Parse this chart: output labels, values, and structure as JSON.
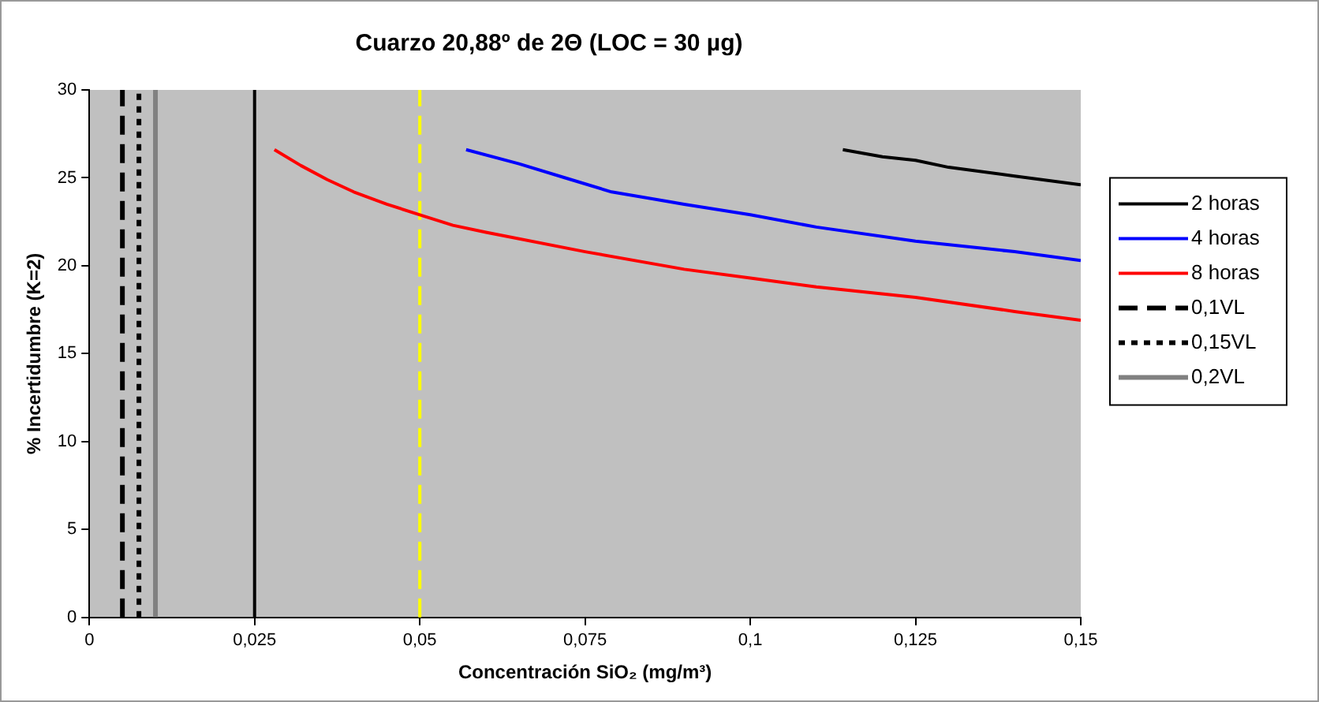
{
  "chart_data": {
    "type": "line",
    "title": "Cuarzo 20,88º de 2Θ (LOC = 30 µg)",
    "xlabel": "Concentración SiO₂ (mg/m³)",
    "ylabel": "% Incertidumbre (K=2)",
    "xlim": [
      0,
      0.15
    ],
    "xticks": [
      0,
      {
        "value": 0.025,
        "label": "0,025"
      },
      {
        "value": 0.05,
        "label": "0,05"
      },
      {
        "value": 0.075,
        "label": "0,075"
      },
      {
        "value": 0.1,
        "label": "0,1"
      },
      {
        "value": 0.125,
        "label": "0,125"
      },
      {
        "value": 0.15,
        "label": "0,15"
      }
    ],
    "ylim": [
      0,
      30
    ],
    "yticks": [
      0,
      5,
      10,
      15,
      20,
      25,
      30
    ],
    "grid": false,
    "legend": "right",
    "marker": "none",
    "series": [
      {
        "name": "2 horas",
        "color": "#000000",
        "x": [
          0.114,
          0.12,
          0.125,
          0.13,
          0.14,
          0.15
        ],
        "values": [
          26.6,
          26.2,
          26.0,
          25.6,
          25.1,
          24.6
        ]
      },
      {
        "name": "4 horas",
        "color": "#0000ff",
        "x": [
          0.057,
          0.065,
          0.072,
          0.079,
          0.09,
          0.1,
          0.11,
          0.125,
          0.14,
          0.15
        ],
        "values": [
          26.6,
          25.8,
          25.0,
          24.2,
          23.5,
          22.9,
          22.2,
          21.4,
          20.8,
          20.3
        ]
      },
      {
        "name": "8 horas",
        "color": "#ff0000",
        "x": [
          0.028,
          0.032,
          0.036,
          0.04,
          0.045,
          0.05,
          0.055,
          0.06,
          0.075,
          0.09,
          0.1,
          0.11,
          0.125,
          0.14,
          0.15
        ],
        "values": [
          26.6,
          25.7,
          24.9,
          24.2,
          23.5,
          22.9,
          22.3,
          21.9,
          20.8,
          19.8,
          19.3,
          18.8,
          18.2,
          17.4,
          16.9
        ]
      },
      {
        "name": "0,1VL",
        "color": "#000000",
        "line_style": "dashed",
        "x": [
          0.005,
          0.005
        ],
        "values": [
          0,
          30
        ]
      },
      {
        "name": "0,15VL",
        "color": "#000000",
        "line_style": "dotted",
        "x": [
          0.0075,
          0.0075
        ],
        "values": [
          0,
          30
        ]
      },
      {
        "name": "0,2VL",
        "color": "#808080",
        "x": [
          0.01,
          0.01
        ],
        "values": [
          0,
          30
        ]
      }
    ],
    "ref_lines": [
      {
        "axis": "x",
        "value": 0.025,
        "color": "#000000",
        "line_style": "solid"
      },
      {
        "axis": "x",
        "value": 0.05,
        "color": "#ffff00",
        "line_style": "dashed"
      }
    ]
  }
}
